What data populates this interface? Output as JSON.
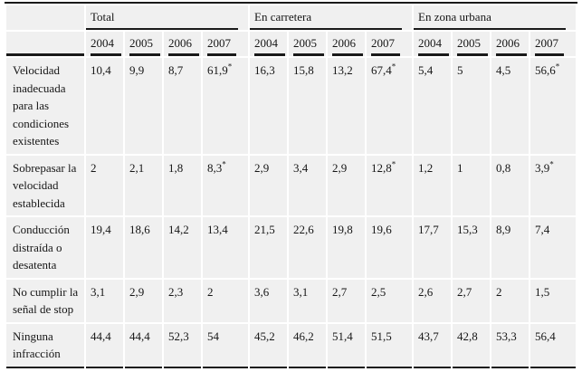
{
  "table": {
    "corner_label": "",
    "col_groups": [
      {
        "label": "Total",
        "years": [
          "2004",
          "2005",
          "2006",
          "2007"
        ]
      },
      {
        "label": "En carretera",
        "years": [
          "2004",
          "2005",
          "2006",
          "2007"
        ]
      },
      {
        "label": "En zona urbana",
        "years": [
          "2004",
          "2005",
          "2006",
          "2007"
        ]
      }
    ],
    "rows": [
      {
        "label": "Velocidad inadecuada para las condiciones existentes",
        "values": [
          "10,4",
          "9,9",
          "8,7",
          "61,9*",
          "16,3",
          "15,8",
          "13,2",
          "67,4*",
          "5,4",
          "5",
          "4,5",
          "56,6*"
        ]
      },
      {
        "label": "Sobrepasar la velocidad establecida",
        "values": [
          "2",
          "2,1",
          "1,8",
          "8,3*",
          "2,9",
          "3,4",
          "2,9",
          "12,8*",
          "1,2",
          "1",
          "0,8",
          "3,9*"
        ]
      },
      {
        "label": "Conducción distraída o desatenta",
        "values": [
          "19,4",
          "18,6",
          "14,2",
          "13,4",
          "21,5",
          "22,6",
          "19,8",
          "19,6",
          "17,7",
          "15,3",
          "8,9",
          "7,4"
        ]
      },
      {
        "label": "No cumplir la señal de stop",
        "values": [
          "3,1",
          "2,9",
          "2,3",
          "2",
          "3,6",
          "3,1",
          "2,7",
          "2,5",
          "2,6",
          "2,7",
          "2",
          "1,5"
        ]
      },
      {
        "label": "Ninguna infracción",
        "values": [
          "44,4",
          "44,4",
          "52,3",
          "54",
          "45,2",
          "46,2",
          "51,4",
          "51,5",
          "43,7",
          "42,8",
          "53,3",
          "56,4"
        ]
      }
    ],
    "footnote_marker": "*"
  },
  "colors": {
    "cell_background": "#f0f0f0",
    "rule": "#1a1a1a",
    "page_background": "#ffffff",
    "text": "#161616"
  }
}
